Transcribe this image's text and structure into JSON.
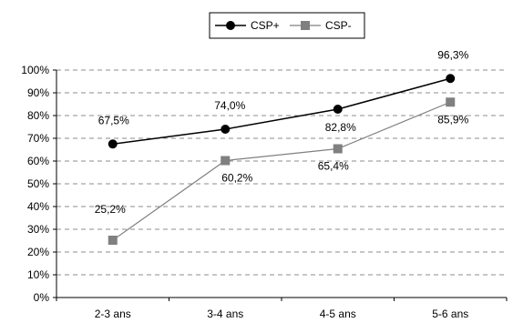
{
  "chart_data": {
    "type": "line",
    "categories": [
      "2-3 ans",
      "3-4 ans",
      "4-5 ans",
      "5-6 ans"
    ],
    "series": [
      {
        "name": "CSP+",
        "values": [
          67.5,
          74.0,
          82.8,
          96.3
        ],
        "labels": [
          "67,5%",
          "74,0%",
          "82,8%",
          "96,3%"
        ],
        "color": "#000000",
        "marker": "circle"
      },
      {
        "name": "CSP-",
        "values": [
          25.2,
          60.2,
          65.4,
          85.9
        ],
        "labels": [
          "25,2%",
          "60,2%",
          "65,4%",
          "85,9%"
        ],
        "color": "#808080",
        "marker": "square"
      }
    ],
    "yticks": [
      "0%",
      "10%",
      "20%",
      "30%",
      "40%",
      "50%",
      "60%",
      "70%",
      "80%",
      "90%",
      "100%"
    ],
    "ylim": [
      0,
      100
    ],
    "grid": true,
    "legend_position": "top-center"
  }
}
